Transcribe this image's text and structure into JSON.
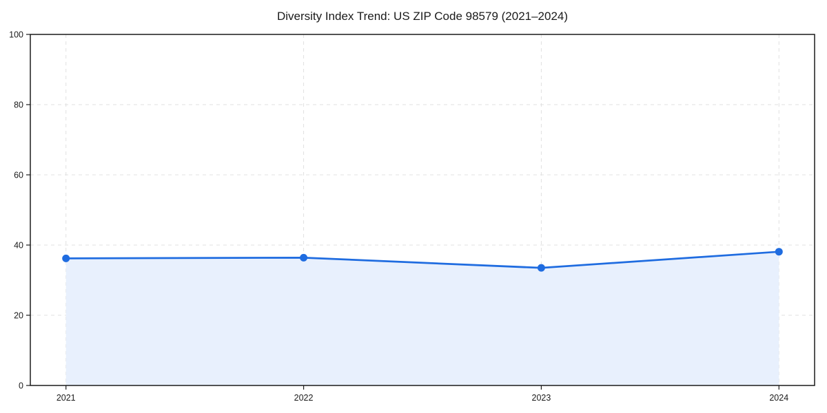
{
  "chart_data": {
    "type": "area",
    "title": "Diversity Index Trend: US ZIP Code 98579 (2021–2024)",
    "series_name": "Diversity Index",
    "x": [
      2021,
      2022,
      2023,
      2024
    ],
    "values": [
      36.2,
      36.4,
      33.5,
      38.1
    ],
    "xticks": [
      "2021",
      "2022",
      "2023",
      "2024"
    ],
    "yticks": [
      0,
      20,
      40,
      60,
      80,
      100
    ],
    "ylim": [
      0,
      100
    ],
    "x_margin_frac": 0.05,
    "grid": true,
    "legend": "none",
    "xlabel": "",
    "ylabel": "",
    "colors": {
      "line": "#1f6ce0",
      "marker": "#1f6ce0",
      "fill": "#e8f0fd",
      "grid": "#e0e0e0",
      "spine": "#1a1a1a",
      "text": "#1a1a1a",
      "background": "#ffffff"
    }
  }
}
